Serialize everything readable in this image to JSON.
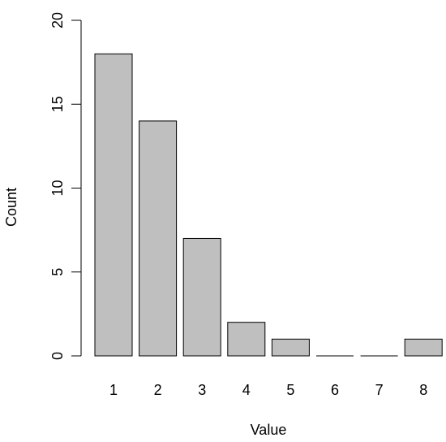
{
  "chart_data": {
    "type": "bar",
    "title": "",
    "xlabel": "Value",
    "ylabel": "Count",
    "categories": [
      "1",
      "2",
      "3",
      "4",
      "5",
      "6",
      "7",
      "8"
    ],
    "values": [
      18,
      14,
      7,
      2,
      1,
      0,
      0,
      1
    ],
    "ylim": [
      0,
      20
    ],
    "yticks": [
      "0",
      "5",
      "10",
      "15",
      "20"
    ],
    "grid": false,
    "legend": "none",
    "bar_color": "#bfbfbf",
    "bar_outline_color": "#000000"
  }
}
